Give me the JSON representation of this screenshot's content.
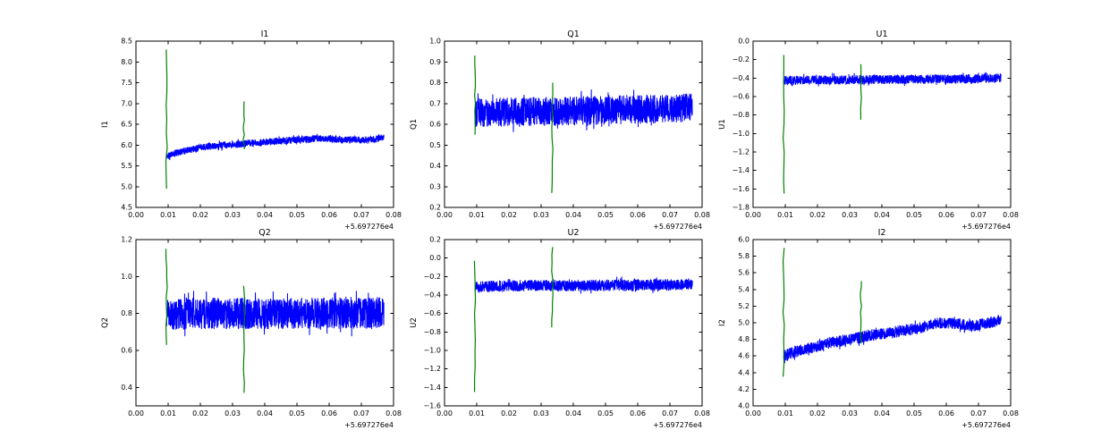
{
  "figure": {
    "background": "#ffffff",
    "colors": {
      "series_line": "#0000ff",
      "spike_line": "#008000",
      "axis": "#000000"
    }
  },
  "chart_data": [
    {
      "type": "line",
      "title": "I1",
      "ylabel": "I1",
      "x_offset_label": "+5.697276e4",
      "xlim": [
        0.0,
        0.08
      ],
      "ylim": [
        4.5,
        8.5
      ],
      "xticks": [
        0.0,
        0.01,
        0.02,
        0.03,
        0.04,
        0.05,
        0.06,
        0.07,
        0.08
      ],
      "xtick_labels": [
        "0.00",
        "0.01",
        "0.02",
        "0.03",
        "0.04",
        "0.05",
        "0.06",
        "0.07",
        "0.08"
      ],
      "yticks": [
        4.5,
        5.0,
        5.5,
        6.0,
        6.5,
        7.0,
        7.5,
        8.0,
        8.5
      ],
      "ytick_labels": [
        "4.5",
        "5.0",
        "5.5",
        "6.0",
        "6.5",
        "7.0",
        "7.5",
        "8.0",
        "8.5"
      ],
      "series": {
        "blue_band": {
          "x_start": 0.0095,
          "x_end": 0.077,
          "trend_x": [
            0.0095,
            0.012,
            0.016,
            0.022,
            0.03,
            0.04,
            0.05,
            0.058,
            0.065,
            0.072,
            0.077
          ],
          "trend_y": [
            5.72,
            5.8,
            5.88,
            5.96,
            6.01,
            6.07,
            6.13,
            6.16,
            6.13,
            6.12,
            6.18
          ],
          "noise_half_width": 0.085
        },
        "green_spikes": [
          {
            "x": 0.0095,
            "y_min": 4.95,
            "y_max": 8.3
          },
          {
            "x": 0.0335,
            "y_min": 5.9,
            "y_max": 7.05
          }
        ]
      }
    },
    {
      "type": "line",
      "title": "Q1",
      "ylabel": "Q1",
      "x_offset_label": "+5.697276e4",
      "xlim": [
        0.0,
        0.08
      ],
      "ylim": [
        0.2,
        1.0
      ],
      "xticks": [
        0.0,
        0.01,
        0.02,
        0.03,
        0.04,
        0.05,
        0.06,
        0.07,
        0.08
      ],
      "xtick_labels": [
        "0.00",
        "0.01",
        "0.02",
        "0.03",
        "0.04",
        "0.05",
        "0.06",
        "0.07",
        "0.08"
      ],
      "yticks": [
        0.2,
        0.3,
        0.4,
        0.5,
        0.6,
        0.7,
        0.8,
        0.9,
        1.0
      ],
      "ytick_labels": [
        "0.2",
        "0.3",
        "0.4",
        "0.5",
        "0.6",
        "0.7",
        "0.8",
        "0.9",
        "1.0"
      ],
      "series": {
        "blue_band": {
          "x_start": 0.0095,
          "x_end": 0.077,
          "trend_x": [
            0.0095,
            0.02,
            0.03,
            0.04,
            0.05,
            0.06,
            0.07,
            0.077
          ],
          "trend_y": [
            0.655,
            0.66,
            0.662,
            0.664,
            0.668,
            0.672,
            0.676,
            0.68
          ],
          "noise_half_width": 0.07
        },
        "green_spikes": [
          {
            "x": 0.0095,
            "y_min": 0.55,
            "y_max": 0.93
          },
          {
            "x": 0.0335,
            "y_min": 0.27,
            "y_max": 0.8
          }
        ]
      }
    },
    {
      "type": "line",
      "title": "U1",
      "ylabel": "U1",
      "x_offset_label": "+5.697276e4",
      "xlim": [
        0.0,
        0.08
      ],
      "ylim": [
        -1.8,
        0.0
      ],
      "xticks": [
        0.0,
        0.01,
        0.02,
        0.03,
        0.04,
        0.05,
        0.06,
        0.07,
        0.08
      ],
      "xtick_labels": [
        "0.00",
        "0.01",
        "0.02",
        "0.03",
        "0.04",
        "0.05",
        "0.06",
        "0.07",
        "0.08"
      ],
      "yticks": [
        0.0,
        -0.2,
        -0.4,
        -0.6,
        -0.8,
        -1.0,
        -1.2,
        -1.4,
        -1.6,
        -1.8
      ],
      "ytick_labels": [
        "0.0",
        "−0.2",
        "−0.4",
        "−0.6",
        "−0.8",
        "−1.0",
        "−1.2",
        "−1.4",
        "−1.6",
        "−1.8"
      ],
      "series": {
        "blue_band": {
          "x_start": 0.0095,
          "x_end": 0.077,
          "trend_x": [
            0.0095,
            0.02,
            0.03,
            0.04,
            0.05,
            0.06,
            0.07,
            0.077
          ],
          "trend_y": [
            -0.425,
            -0.42,
            -0.418,
            -0.415,
            -0.412,
            -0.41,
            -0.408,
            -0.4
          ],
          "noise_half_width": 0.05
        },
        "green_spikes": [
          {
            "x": 0.0095,
            "y_min": -1.65,
            "y_max": -0.15
          },
          {
            "x": 0.0335,
            "y_min": -0.85,
            "y_max": -0.25
          }
        ]
      }
    },
    {
      "type": "line",
      "title": "Q2",
      "ylabel": "Q2",
      "x_offset_label": "+5.697276e4",
      "xlim": [
        0.0,
        0.08
      ],
      "ylim": [
        0.3,
        1.2
      ],
      "xticks": [
        0.0,
        0.01,
        0.02,
        0.03,
        0.04,
        0.05,
        0.06,
        0.07,
        0.08
      ],
      "xtick_labels": [
        "0.00",
        "0.01",
        "0.02",
        "0.03",
        "0.04",
        "0.05",
        "0.06",
        "0.07",
        "0.08"
      ],
      "yticks": [
        0.4,
        0.6,
        0.8,
        1.0,
        1.2
      ],
      "ytick_labels": [
        "0.4",
        "0.6",
        "0.8",
        "1.0",
        "1.2"
      ],
      "series": {
        "blue_band": {
          "x_start": 0.0095,
          "x_end": 0.077,
          "trend_x": [
            0.0095,
            0.02,
            0.03,
            0.04,
            0.05,
            0.06,
            0.07,
            0.077
          ],
          "trend_y": [
            0.795,
            0.8,
            0.8,
            0.798,
            0.8,
            0.802,
            0.8,
            0.808
          ],
          "noise_half_width": 0.085
        },
        "green_spikes": [
          {
            "x": 0.0095,
            "y_min": 0.63,
            "y_max": 1.15
          },
          {
            "x": 0.0335,
            "y_min": 0.37,
            "y_max": 0.95
          }
        ]
      }
    },
    {
      "type": "line",
      "title": "U2",
      "ylabel": "U2",
      "x_offset_label": "+5.697276e4",
      "xlim": [
        0.0,
        0.08
      ],
      "ylim": [
        -1.6,
        0.2
      ],
      "xticks": [
        0.0,
        0.01,
        0.02,
        0.03,
        0.04,
        0.05,
        0.06,
        0.07,
        0.08
      ],
      "xtick_labels": [
        "0.00",
        "0.01",
        "0.02",
        "0.03",
        "0.04",
        "0.05",
        "0.06",
        "0.07",
        "0.08"
      ],
      "yticks": [
        0.2,
        0.0,
        -0.2,
        -0.4,
        -0.6,
        -0.8,
        -1.0,
        -1.2,
        -1.4,
        -1.6
      ],
      "ytick_labels": [
        "0.2",
        "0.0",
        "−0.2",
        "−0.4",
        "−0.6",
        "−0.8",
        "−1.0",
        "−1.2",
        "−1.4",
        "−1.6"
      ],
      "series": {
        "blue_band": {
          "x_start": 0.0095,
          "x_end": 0.077,
          "trend_x": [
            0.0095,
            0.02,
            0.03,
            0.04,
            0.05,
            0.06,
            0.07,
            0.077
          ],
          "trend_y": [
            -0.31,
            -0.3,
            -0.298,
            -0.3,
            -0.295,
            -0.292,
            -0.29,
            -0.282
          ],
          "noise_half_width": 0.062
        },
        "green_spikes": [
          {
            "x": 0.0095,
            "y_min": -1.45,
            "y_max": -0.03
          },
          {
            "x": 0.0335,
            "y_min": -0.75,
            "y_max": 0.12
          }
        ]
      }
    },
    {
      "type": "line",
      "title": "I2",
      "ylabel": "I2",
      "x_offset_label": "+5.697276e4",
      "xlim": [
        0.0,
        0.08
      ],
      "ylim": [
        4.0,
        6.0
      ],
      "xticks": [
        0.0,
        0.01,
        0.02,
        0.03,
        0.04,
        0.05,
        0.06,
        0.07,
        0.08
      ],
      "xtick_labels": [
        "0.00",
        "0.01",
        "0.02",
        "0.03",
        "0.04",
        "0.05",
        "0.06",
        "0.07",
        "0.08"
      ],
      "yticks": [
        4.0,
        4.2,
        4.4,
        4.6,
        4.8,
        5.0,
        5.2,
        5.4,
        5.6,
        5.8,
        6.0
      ],
      "ytick_labels": [
        "4.0",
        "4.2",
        "4.4",
        "4.6",
        "4.8",
        "5.0",
        "5.2",
        "5.4",
        "5.6",
        "5.8",
        "6.0"
      ],
      "series": {
        "blue_band": {
          "x_start": 0.0095,
          "x_end": 0.077,
          "trend_x": [
            0.0095,
            0.013,
            0.018,
            0.024,
            0.03,
            0.037,
            0.044,
            0.051,
            0.057,
            0.063,
            0.068,
            0.073,
            0.077
          ],
          "trend_y": [
            4.6,
            4.65,
            4.7,
            4.76,
            4.8,
            4.85,
            4.89,
            4.93,
            5.0,
            4.99,
            4.96,
            5.0,
            5.03
          ],
          "noise_half_width": 0.07
        },
        "green_spikes": [
          {
            "x": 0.0095,
            "y_min": 4.35,
            "y_max": 5.9
          },
          {
            "x": 0.0335,
            "y_min": 4.75,
            "y_max": 5.5
          }
        ]
      }
    }
  ]
}
